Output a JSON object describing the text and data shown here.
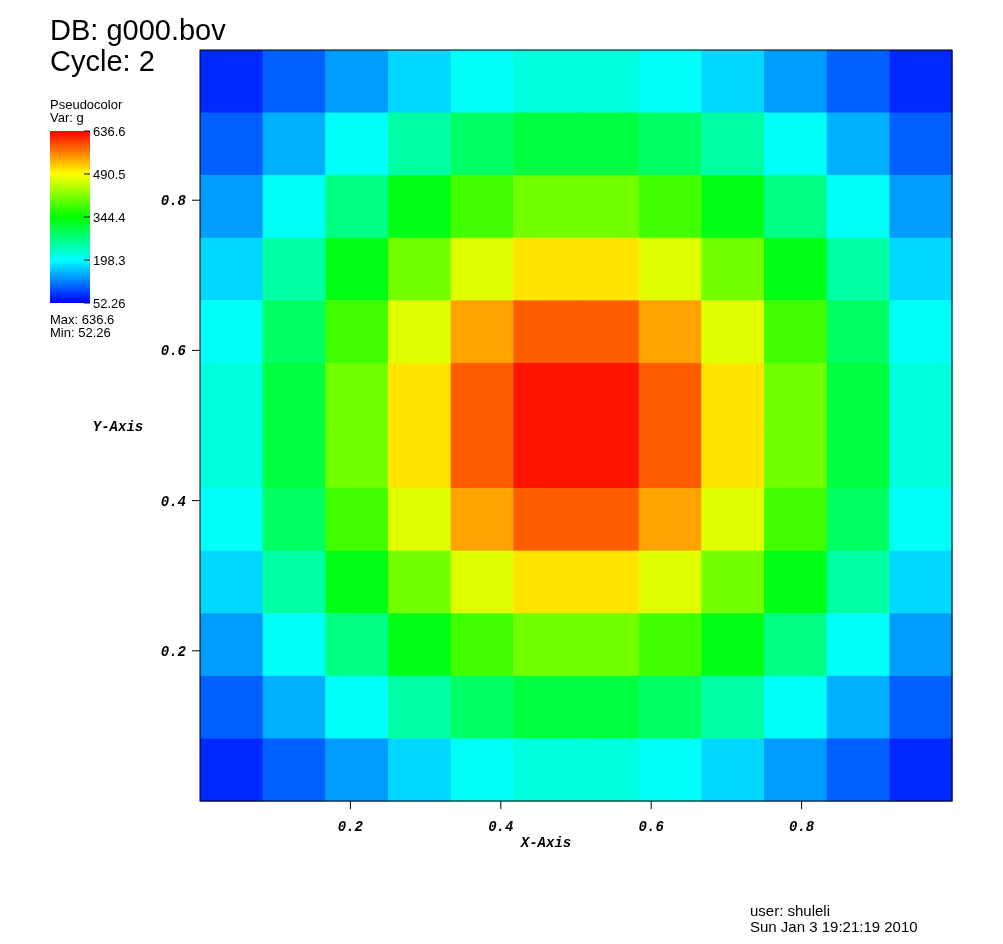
{
  "chart_data": {
    "type": "heatmap",
    "title": "DB: g000.bov",
    "subtitle": "Cycle: 2",
    "xlabel": "X-Axis",
    "ylabel": "Y-Axis",
    "clabel": "Var: g",
    "annotations": [
      "Pseudocolor",
      "Max:  636.6",
      "Min:  52.26",
      "user: shuleli",
      "Sun Jan  3 19:21:19 2010"
    ],
    "xlim": [
      0,
      1
    ],
    "ylim": [
      0,
      1
    ],
    "xticks": [
      0.2,
      0.4,
      0.6,
      0.8
    ],
    "yticks": [
      0.2,
      0.4,
      0.6,
      0.8
    ],
    "clim": [
      52.26,
      636.6
    ],
    "cticks": [
      52.26,
      198.3,
      344.4,
      490.5,
      636.6
    ],
    "cells": [
      [
        75,
        107,
        142,
        176,
        202,
        217,
        217,
        202,
        176,
        142,
        107,
        75
      ],
      [
        107,
        153,
        202,
        250,
        288,
        309,
        309,
        288,
        250,
        202,
        153,
        107
      ],
      [
        142,
        202,
        268,
        332,
        382,
        410,
        410,
        382,
        332,
        268,
        202,
        142
      ],
      [
        176,
        250,
        332,
        410,
        472,
        506,
        506,
        472,
        410,
        332,
        250,
        176
      ],
      [
        202,
        288,
        382,
        472,
        543,
        583,
        583,
        543,
        472,
        382,
        288,
        202
      ],
      [
        217,
        309,
        410,
        506,
        583,
        625,
        625,
        583,
        506,
        410,
        309,
        217
      ],
      [
        217,
        309,
        410,
        506,
        583,
        625,
        625,
        583,
        506,
        410,
        309,
        217
      ],
      [
        202,
        288,
        382,
        472,
        543,
        583,
        583,
        543,
        472,
        382,
        288,
        202
      ],
      [
        176,
        250,
        332,
        410,
        472,
        506,
        506,
        472,
        410,
        332,
        250,
        176
      ],
      [
        142,
        202,
        268,
        332,
        382,
        410,
        410,
        382,
        332,
        268,
        202,
        142
      ],
      [
        107,
        153,
        202,
        250,
        288,
        309,
        309,
        288,
        250,
        202,
        153,
        107
      ],
      [
        75,
        107,
        142,
        176,
        202,
        217,
        217,
        202,
        176,
        142,
        107,
        75
      ]
    ]
  }
}
